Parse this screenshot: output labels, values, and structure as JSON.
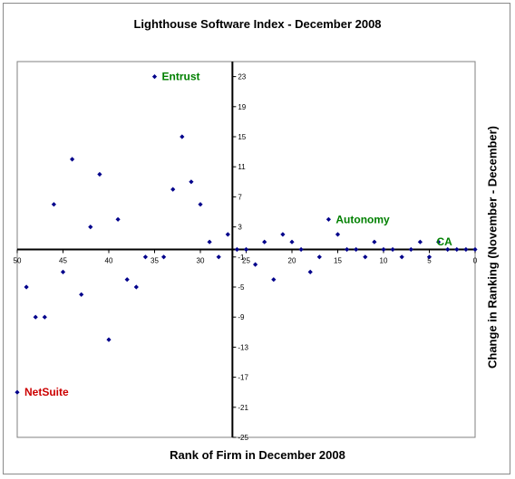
{
  "chart_data": {
    "type": "scatter",
    "title": "Lighthouse Software Index - December 2008",
    "xlabel": "Rank of Firm in December 2008",
    "ylabel": "Change in Ranking (November - December)",
    "xlim": [
      50,
      0
    ],
    "ylim": [
      -25,
      25
    ],
    "x_ticks": [
      50,
      45,
      40,
      35,
      30,
      25,
      20,
      15,
      10,
      5,
      0
    ],
    "y_ticks": [
      23,
      19,
      15,
      11,
      7,
      3,
      -1,
      -5,
      -9,
      -13,
      -17,
      -21,
      -25
    ],
    "marker_color": "#00008b",
    "points": [
      {
        "x": 50,
        "y": -19
      },
      {
        "x": 49,
        "y": -5
      },
      {
        "x": 48,
        "y": -9
      },
      {
        "x": 47,
        "y": -9
      },
      {
        "x": 46,
        "y": 6
      },
      {
        "x": 45,
        "y": -3
      },
      {
        "x": 44,
        "y": 12
      },
      {
        "x": 43,
        "y": -6
      },
      {
        "x": 42,
        "y": 3
      },
      {
        "x": 41,
        "y": 10
      },
      {
        "x": 40,
        "y": -12
      },
      {
        "x": 39,
        "y": 4
      },
      {
        "x": 38,
        "y": -4
      },
      {
        "x": 37,
        "y": -5
      },
      {
        "x": 36,
        "y": -1
      },
      {
        "x": 35,
        "y": 23
      },
      {
        "x": 34,
        "y": -1
      },
      {
        "x": 33,
        "y": 8
      },
      {
        "x": 32,
        "y": 15
      },
      {
        "x": 31,
        "y": 9
      },
      {
        "x": 30,
        "y": 6
      },
      {
        "x": 29,
        "y": 1
      },
      {
        "x": 28,
        "y": -1
      },
      {
        "x": 27,
        "y": 2
      },
      {
        "x": 26,
        "y": 0
      },
      {
        "x": 25,
        "y": 0
      },
      {
        "x": 24,
        "y": -2
      },
      {
        "x": 23,
        "y": 1
      },
      {
        "x": 22,
        "y": -4
      },
      {
        "x": 21,
        "y": 2
      },
      {
        "x": 20,
        "y": 1
      },
      {
        "x": 19,
        "y": 0
      },
      {
        "x": 18,
        "y": -3
      },
      {
        "x": 17,
        "y": -1
      },
      {
        "x": 16,
        "y": 4
      },
      {
        "x": 15,
        "y": 2
      },
      {
        "x": 14,
        "y": 0
      },
      {
        "x": 13,
        "y": 0
      },
      {
        "x": 12,
        "y": -1
      },
      {
        "x": 11,
        "y": 1
      },
      {
        "x": 10,
        "y": 0
      },
      {
        "x": 9,
        "y": 0
      },
      {
        "x": 8,
        "y": -1
      },
      {
        "x": 7,
        "y": 0
      },
      {
        "x": 6,
        "y": 1
      },
      {
        "x": 5,
        "y": -1
      },
      {
        "x": 4,
        "y": 1
      },
      {
        "x": 3,
        "y": 0
      },
      {
        "x": 2,
        "y": 0
      },
      {
        "x": 1,
        "y": 0
      },
      {
        "x": 0,
        "y": 0
      }
    ],
    "annotations": [
      {
        "text": "Entrust",
        "x": 35,
        "y": 23,
        "color": "#008000"
      },
      {
        "text": "Autonomy",
        "x": 16,
        "y": 4,
        "color": "#008000"
      },
      {
        "text": "CA",
        "x": 5,
        "y": 1,
        "color": "#008000"
      },
      {
        "text": "NetSuite",
        "x": 50,
        "y": -19,
        "color": "#cc0000"
      }
    ]
  }
}
